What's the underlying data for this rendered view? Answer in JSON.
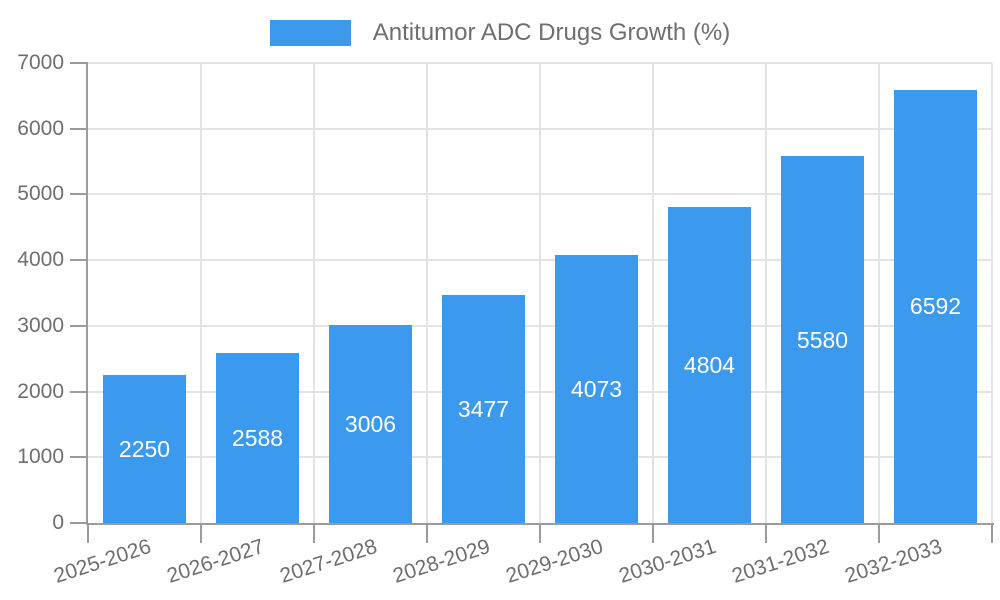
{
  "chart_data": {
    "type": "bar",
    "title": "Antitumor ADC Drugs Growth (%)",
    "legend": {
      "label": "Antitumor ADC Drugs Growth (%)",
      "position": "top-center"
    },
    "categories": [
      "2025-2026",
      "2026-2027",
      "2027-2028",
      "2028-2029",
      "2029-2030",
      "2030-2031",
      "2031-2032",
      "2032-2033"
    ],
    "values": [
      2250,
      2588,
      3006,
      3477,
      4073,
      4804,
      5580,
      6592
    ],
    "xlabel": "",
    "ylabel": "",
    "ylim": [
      0,
      7000
    ],
    "yticks": [
      0,
      1000,
      2000,
      3000,
      4000,
      5000,
      6000,
      7000
    ],
    "grid": true,
    "x_label_rotation_deg": -18,
    "colors": {
      "bar": "#3B99EE",
      "grid": "#E3E3E3",
      "axis": "#9B9B9B",
      "text": "#6E6E6E",
      "value_label": "#FFFFFF",
      "background": "#FFFFFF"
    }
  }
}
